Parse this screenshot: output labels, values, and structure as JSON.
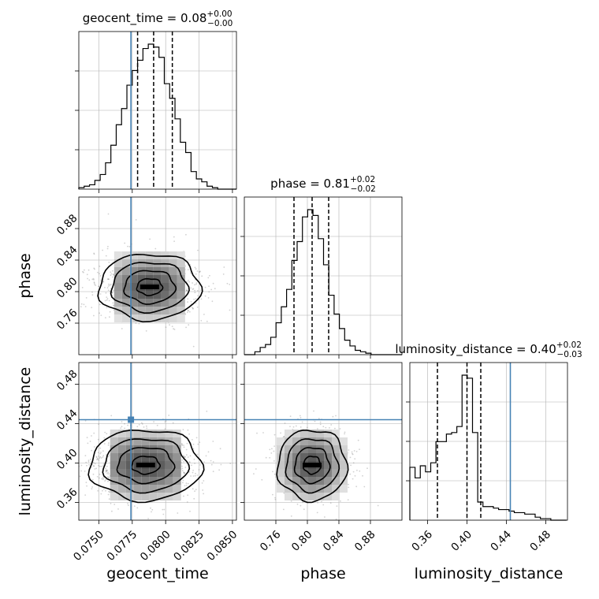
{
  "chart_data": {
    "type": "corner",
    "grid": true,
    "truth_color": "#4682b4",
    "hist_color": "#000000",
    "parameters": [
      {
        "name": "geocent_time",
        "xlabel": "geocent_time",
        "range": [
          0.0735,
          0.0853
        ],
        "ticks": [
          0.075,
          0.0775,
          0.08,
          0.0825,
          0.085
        ],
        "tick_labels": [
          "0.0750",
          "0.0775",
          "0.0800",
          "0.0825",
          "0.0850"
        ],
        "truth": 0.0774,
        "quantiles": [
          0.0779,
          0.0791,
          0.0805
        ],
        "title_name": "geocent_time",
        "title_value": "0.08",
        "title_plus": "0.00",
        "title_minus": "0.00",
        "hist": {
          "edges_start": 0.0735,
          "bin_width": 0.0004,
          "counts": [
            0.01,
            0.02,
            0.03,
            0.06,
            0.1,
            0.18,
            0.3,
            0.44,
            0.55,
            0.71,
            0.81,
            0.88,
            0.96,
            0.99,
            0.97,
            0.9,
            0.72,
            0.62,
            0.48,
            0.32,
            0.25,
            0.12,
            0.07,
            0.05,
            0.02,
            0.01,
            0.0,
            0.0,
            0.0,
            0.0
          ]
        }
      },
      {
        "name": "phase",
        "xlabel": "phase",
        "ylabel": "phase",
        "range": [
          0.72,
          0.92
        ],
        "ticks": [
          0.76,
          0.8,
          0.84,
          0.88
        ],
        "tick_labels": [
          "0.76",
          "0.80",
          "0.84",
          "0.88"
        ],
        "truth": null,
        "quantiles": [
          0.783,
          0.806,
          0.827
        ],
        "title_name": "phase",
        "title_value": "0.81",
        "title_plus": "0.02",
        "title_minus": "0.02",
        "hist": {
          "edges_start": 0.72,
          "bin_width": 0.0067,
          "counts": [
            0.0,
            0.0,
            0.02,
            0.05,
            0.07,
            0.12,
            0.22,
            0.33,
            0.45,
            0.65,
            0.78,
            0.95,
            1.0,
            0.96,
            0.8,
            0.62,
            0.41,
            0.28,
            0.18,
            0.1,
            0.06,
            0.03,
            0.02,
            0.01,
            0.0,
            0.0,
            0.0,
            0.0,
            0.0,
            0.0
          ]
        }
      },
      {
        "name": "luminosity_distance",
        "xlabel": "luminosity_distance",
        "ylabel": "luminosity_distance",
        "range": [
          0.342,
          0.502
        ],
        "ticks": [
          0.36,
          0.4,
          0.44,
          0.48
        ],
        "tick_labels": [
          "0.36",
          "0.40",
          "0.44",
          "0.48"
        ],
        "truth": 0.444,
        "quantiles": [
          0.37,
          0.4,
          0.414
        ],
        "title_name": "luminosity_distance",
        "title_value": "0.40",
        "title_plus": "0.02",
        "title_minus": "0.03",
        "hist": {
          "edges_start": 0.342,
          "bin_width": 0.0053,
          "counts": [
            0.35,
            0.28,
            0.36,
            0.32,
            0.38,
            0.52,
            0.52,
            0.57,
            0.58,
            0.62,
            0.96,
            0.94,
            0.58,
            0.12,
            0.09,
            0.09,
            0.08,
            0.07,
            0.07,
            0.06,
            0.05,
            0.05,
            0.04,
            0.04,
            0.02,
            0.01,
            0.01,
            0.0,
            0.0,
            0.0
          ]
        }
      }
    ],
    "pairs": [
      {
        "x": "geocent_time",
        "y": "phase",
        "center": [
          0.0788,
          0.806
        ],
        "sigma": [
          0.0019,
          0.021
        ],
        "rho": 0.0,
        "truth_point": null
      },
      {
        "x": "geocent_time",
        "y": "luminosity_distance",
        "center": [
          0.0785,
          0.398
        ],
        "sigma": [
          0.0021,
          0.018
        ],
        "rho": 0.05,
        "truth_point": [
          0.0774,
          0.444
        ]
      },
      {
        "x": "phase",
        "y": "luminosity_distance",
        "center": [
          0.806,
          0.398
        ],
        "sigma": [
          0.022,
          0.018
        ],
        "rho": 0.0,
        "truth_point": null
      }
    ]
  }
}
